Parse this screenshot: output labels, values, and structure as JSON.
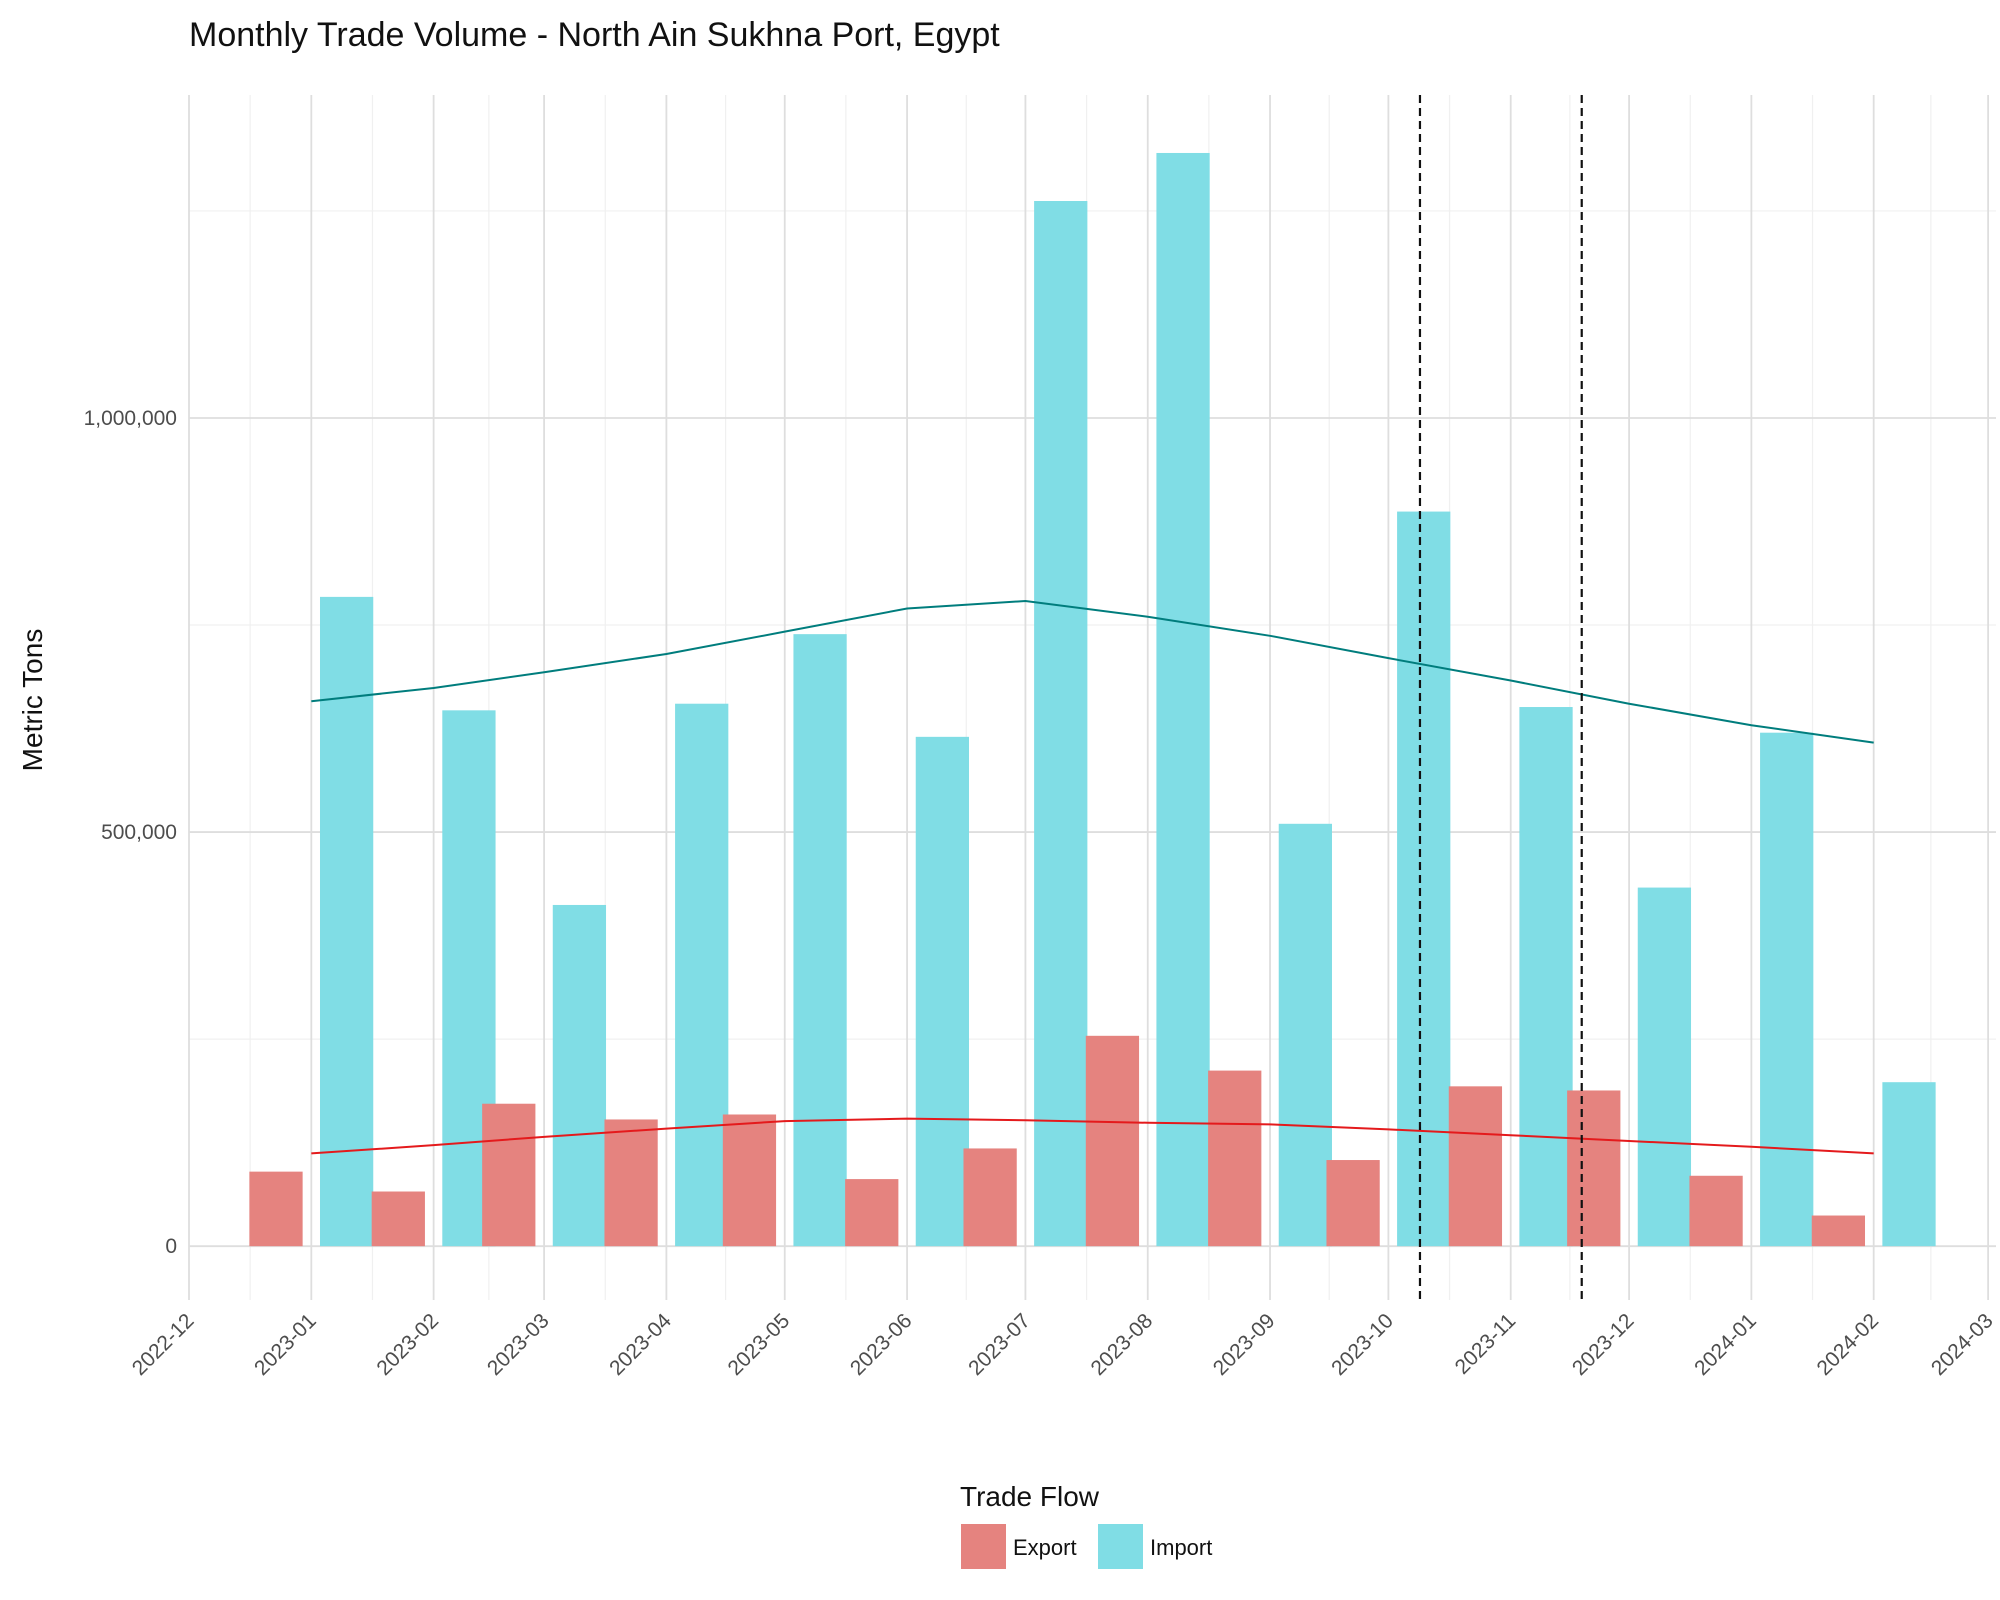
{
  "chart_data": {
    "type": "bar",
    "title": "Monthly Trade Volume - North Ain Sukhna Port, Egypt",
    "xlabel": "",
    "ylabel": "Metric Tons",
    "x_ticks": [
      "2022-12",
      "2023-01",
      "2023-02",
      "2023-03",
      "2023-04",
      "2023-05",
      "2023-06",
      "2023-07",
      "2023-08",
      "2023-09",
      "2023-10",
      "2023-11",
      "2023-12",
      "2024-01",
      "2024-02",
      "2024-03"
    ],
    "y_ticks": [
      0,
      500000,
      1000000
    ],
    "y_tick_labels": [
      "0",
      "500,000",
      "1,000,000"
    ],
    "ylim": [
      -65000,
      1390000
    ],
    "xlim": [
      "2022-12-01",
      "2024-03-03"
    ],
    "grid": true,
    "legend": {
      "title": "Trade Flow",
      "placement": "bottom"
    },
    "categories": [
      "2023-01",
      "2023-02",
      "2023-03",
      "2023-04",
      "2023-05",
      "2023-06",
      "2023-07",
      "2023-08",
      "2023-09",
      "2023-10",
      "2023-11",
      "2023-12",
      "2024-01",
      "2024-02"
    ],
    "series": [
      {
        "name": "Export",
        "color": "#E5837F",
        "values": [
          90000,
          66000,
          172000,
          153000,
          159000,
          81000,
          118000,
          254000,
          212000,
          104000,
          193000,
          188000,
          85000,
          37000
        ],
        "trend": [
          112000,
          122000,
          132000,
          142000,
          151000,
          154000,
          152000,
          149000,
          147000,
          141000,
          134000,
          127000,
          120000,
          112000
        ]
      },
      {
        "name": "Import",
        "color": "#80DDE5",
        "values": [
          784000,
          647000,
          412000,
          655000,
          739000,
          615000,
          1262000,
          1320000,
          510000,
          887000,
          651000,
          433000,
          620000,
          198000
        ],
        "trend": [
          658000,
          674000,
          693000,
          715000,
          742000,
          770000,
          779000,
          760000,
          737000,
          710000,
          683000,
          655000,
          629000,
          608000
        ]
      }
    ],
    "trend_colors": {
      "Export": "#E41A1C",
      "Import": "#007D7D"
    },
    "reference_lines": [
      "2023-10-09",
      "2023-11-19"
    ]
  }
}
